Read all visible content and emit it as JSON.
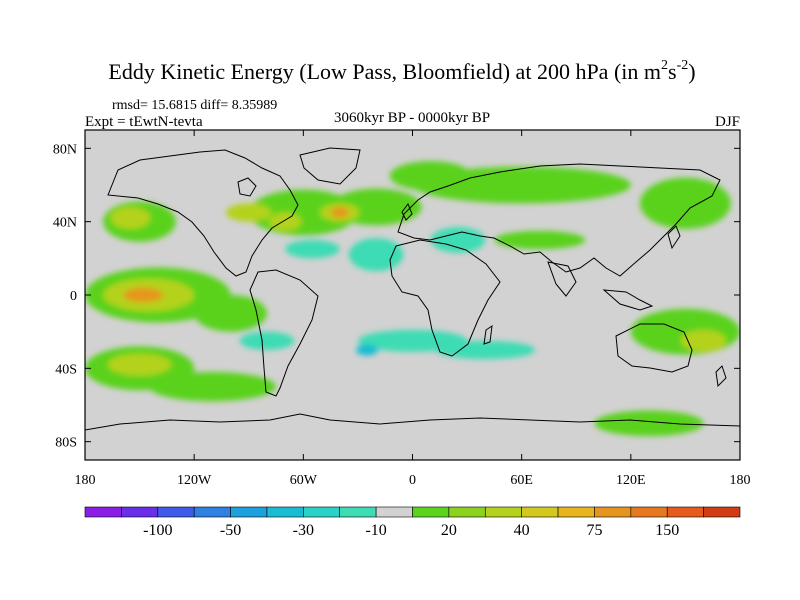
{
  "chart_data": {
    "type": "heatmap",
    "title_main": "Eddy Kinetic Energy (Low Pass, Bloomfield) at 200 hPa (in m",
    "title_sup1": "2",
    "title_s": "s",
    "title_sup2": "-2",
    "title_close": ")",
    "stats_text": "rmsd= 15.6815 diff= 8.35989",
    "experiment_text": "Expt = tEwtN-tevta",
    "period_text": "3060kyr BP - 0000kyr BP",
    "season_text": "DJF",
    "xlim": [
      -180,
      180
    ],
    "ylim": [
      -90,
      90
    ],
    "x_ticks": [
      {
        "value": -180,
        "label": "180"
      },
      {
        "value": -120,
        "label": "120W"
      },
      {
        "value": -60,
        "label": "60W"
      },
      {
        "value": 0,
        "label": "0"
      },
      {
        "value": 60,
        "label": "60E"
      },
      {
        "value": 120,
        "label": "120E"
      },
      {
        "value": 180,
        "label": "180"
      }
    ],
    "y_ticks": [
      {
        "value": 80,
        "label": "80N"
      },
      {
        "value": 40,
        "label": "40N"
      },
      {
        "value": 0,
        "label": "0"
      },
      {
        "value": -40,
        "label": "40S"
      },
      {
        "value": -80,
        "label": "80S"
      }
    ],
    "colorbar": {
      "colors": [
        "#8b1ee6",
        "#6a2ee8",
        "#3f5ae8",
        "#2f80e0",
        "#1ea0dc",
        "#19bcd2",
        "#28d2c8",
        "#3ddcb4",
        "#d2d2d2",
        "#5ad21e",
        "#8cd21e",
        "#b4d21e",
        "#d2c81e",
        "#e6b41e",
        "#e6961e",
        "#e6781e",
        "#e65a1e",
        "#d23c14"
      ],
      "labels": [
        "-100",
        "-50",
        "-30",
        "-10",
        "20",
        "40",
        "75",
        "150"
      ],
      "label_edges": [
        2,
        4,
        6,
        8,
        10,
        12,
        14,
        16
      ]
    },
    "regions": [
      {
        "level": 20,
        "center": [
          -150,
          40
        ],
        "size": [
          40,
          22
        ]
      },
      {
        "level": 20,
        "center": [
          -60,
          45
        ],
        "size": [
          60,
          25
        ]
      },
      {
        "level": 20,
        "center": [
          -20,
          48
        ],
        "size": [
          50,
          20
        ]
      },
      {
        "level": 20,
        "center": [
          10,
          65
        ],
        "size": [
          45,
          16
        ]
      },
      {
        "level": 20,
        "center": [
          60,
          60
        ],
        "size": [
          120,
          20
        ]
      },
      {
        "level": 20,
        "center": [
          150,
          50
        ],
        "size": [
          50,
          28
        ]
      },
      {
        "level": 20,
        "center": [
          70,
          30
        ],
        "size": [
          50,
          10
        ]
      },
      {
        "level": 20,
        "center": [
          -140,
          0
        ],
        "size": [
          80,
          30
        ]
      },
      {
        "level": 20,
        "center": [
          -100,
          -10
        ],
        "size": [
          40,
          20
        ]
      },
      {
        "level": 20,
        "center": [
          -150,
          -40
        ],
        "size": [
          60,
          24
        ]
      },
      {
        "level": 20,
        "center": [
          -110,
          -50
        ],
        "size": [
          70,
          16
        ]
      },
      {
        "level": 20,
        "center": [
          150,
          -20
        ],
        "size": [
          60,
          25
        ]
      },
      {
        "level": 20,
        "center": [
          130,
          -70
        ],
        "size": [
          60,
          14
        ]
      },
      {
        "level": 40,
        "center": [
          -155,
          42
        ],
        "size": [
          22,
          12
        ]
      },
      {
        "level": 40,
        "center": [
          -90,
          45
        ],
        "size": [
          25,
          10
        ]
      },
      {
        "level": 40,
        "center": [
          -70,
          40
        ],
        "size": [
          18,
          10
        ]
      },
      {
        "level": 40,
        "center": [
          -40,
          45
        ],
        "size": [
          22,
          10
        ]
      },
      {
        "level": 40,
        "center": [
          -145,
          0
        ],
        "size": [
          50,
          18
        ]
      },
      {
        "level": 40,
        "center": [
          -150,
          -38
        ],
        "size": [
          35,
          12
        ]
      },
      {
        "level": 40,
        "center": [
          160,
          -25
        ],
        "size": [
          25,
          12
        ]
      },
      {
        "level": 75,
        "center": [
          -148,
          0
        ],
        "size": [
          22,
          8
        ]
      },
      {
        "level": 75,
        "center": [
          -40,
          45
        ],
        "size": [
          10,
          6
        ]
      },
      {
        "level": -10,
        "center": [
          -55,
          25
        ],
        "size": [
          30,
          10
        ]
      },
      {
        "level": -10,
        "center": [
          -20,
          22
        ],
        "size": [
          30,
          18
        ]
      },
      {
        "level": -10,
        "center": [
          25,
          30
        ],
        "size": [
          30,
          14
        ]
      },
      {
        "level": -10,
        "center": [
          0,
          -25
        ],
        "size": [
          60,
          12
        ]
      },
      {
        "level": -10,
        "center": [
          40,
          -30
        ],
        "size": [
          55,
          10
        ]
      },
      {
        "level": -10,
        "center": [
          -80,
          -25
        ],
        "size": [
          30,
          10
        ]
      },
      {
        "level": -30,
        "center": [
          -25,
          -30
        ],
        "size": [
          12,
          6
        ]
      }
    ]
  }
}
